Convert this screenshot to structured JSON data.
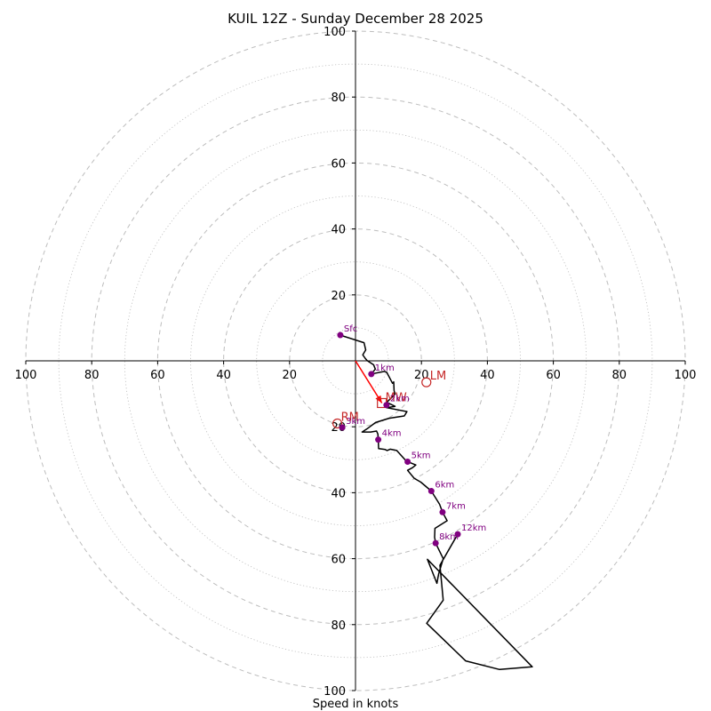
{
  "chart_data": {
    "type": "hodograph",
    "title": "KUIL 12Z - Sunday December 28 2025",
    "xlabel": "Speed in knots",
    "units": "knots",
    "max_speed": 100,
    "ring_step": 10,
    "tick_labels": {
      "left": [
        "100",
        "80",
        "60",
        "40",
        "20"
      ],
      "right": [
        "20",
        "40",
        "60",
        "80",
        "100"
      ],
      "top": [
        "100",
        "80",
        "60",
        "40",
        "20"
      ],
      "bottom": [
        "20",
        "40",
        "60",
        "80",
        "100"
      ]
    },
    "hodograph_trace": [
      [
        -4.6,
        7.8
      ],
      [
        2.6,
        5.5
      ],
      [
        3.1,
        3.3
      ],
      [
        2.2,
        1.8
      ],
      [
        2.9,
        0.8
      ],
      [
        3.5,
        0.1
      ],
      [
        5.5,
        -1.2
      ],
      [
        6.0,
        -2.5
      ],
      [
        4.8,
        -4.0
      ],
      [
        8.8,
        -3.2
      ],
      [
        9.5,
        -3.5
      ],
      [
        11.2,
        -6.8
      ],
      [
        11.6,
        -6.4
      ],
      [
        11.7,
        -9.0
      ],
      [
        12.0,
        -10.1
      ],
      [
        9.5,
        -12.6
      ],
      [
        12.0,
        -13.8
      ],
      [
        9.4,
        -14.2
      ],
      [
        15.6,
        -15.4
      ],
      [
        14.8,
        -16.7
      ],
      [
        10.2,
        -17.4
      ],
      [
        6.1,
        -18.7
      ],
      [
        3.8,
        -20.4
      ],
      [
        2.0,
        -21.6
      ],
      [
        4.6,
        -21.6
      ],
      [
        6.4,
        -21.3
      ],
      [
        6.8,
        -22.2
      ],
      [
        6.9,
        -24.0
      ],
      [
        7.0,
        -26.6
      ],
      [
        9.0,
        -26.9
      ],
      [
        9.6,
        -27.2
      ],
      [
        10.5,
        -26.8
      ],
      [
        12.5,
        -27.2
      ],
      [
        15.4,
        -30.4
      ],
      [
        16.4,
        -30.8
      ],
      [
        18.3,
        -31.6
      ],
      [
        17.3,
        -32.4
      ],
      [
        15.8,
        -33.2
      ],
      [
        17.8,
        -35.6
      ],
      [
        19.8,
        -36.8
      ],
      [
        23.0,
        -39.5
      ],
      [
        25.5,
        -43.5
      ],
      [
        26.4,
        -45.9
      ],
      [
        27.8,
        -48.5
      ],
      [
        24.1,
        -50.8
      ],
      [
        24.0,
        -53.5
      ],
      [
        24.3,
        -55.3
      ],
      [
        26.6,
        -60.0
      ],
      [
        25.2,
        -64.7
      ],
      [
        24.7,
        -67.5
      ],
      [
        21.8,
        -60.2
      ],
      [
        53.6,
        -92.8
      ],
      [
        43.7,
        -93.6
      ],
      [
        33.4,
        -91.0
      ],
      [
        21.6,
        -79.6
      ],
      [
        26.6,
        -72.6
      ],
      [
        25.6,
        -62.0
      ],
      [
        31.0,
        -52.6
      ]
    ],
    "height_markers": [
      {
        "label": "Sfc",
        "u": -4.6,
        "v": 7.8
      },
      {
        "label": "1km",
        "u": 4.8,
        "v": -4.0
      },
      {
        "label": "2km",
        "u": 9.4,
        "v": -13.4
      },
      {
        "label": "3km",
        "u": -4.0,
        "v": -20.2
      },
      {
        "label": "4km",
        "u": 6.9,
        "v": -23.9
      },
      {
        "label": "5km",
        "u": 15.8,
        "v": -30.6
      },
      {
        "label": "6km",
        "u": 23.0,
        "v": -39.5
      },
      {
        "label": "7km",
        "u": 26.4,
        "v": -45.9
      },
      {
        "label": "8km",
        "u": 24.3,
        "v": -55.3
      },
      {
        "label": "12km",
        "u": 31.0,
        "v": -52.6
      }
    ],
    "storm_motion": {
      "mean_wind": {
        "label": "MW",
        "u": 8.0,
        "v": -12.8
      },
      "left_mover": {
        "label": "LM",
        "u": 21.5,
        "v": -6.5
      },
      "right_mover": {
        "label": "RM",
        "u": -5.5,
        "v": -19.0
      }
    },
    "colors": {
      "trace": "#000000",
      "markers": "#800080",
      "storm": "#c62828",
      "arrow": "#ff0000",
      "rings": "#bdbdbd",
      "axes": "#000000"
    }
  }
}
